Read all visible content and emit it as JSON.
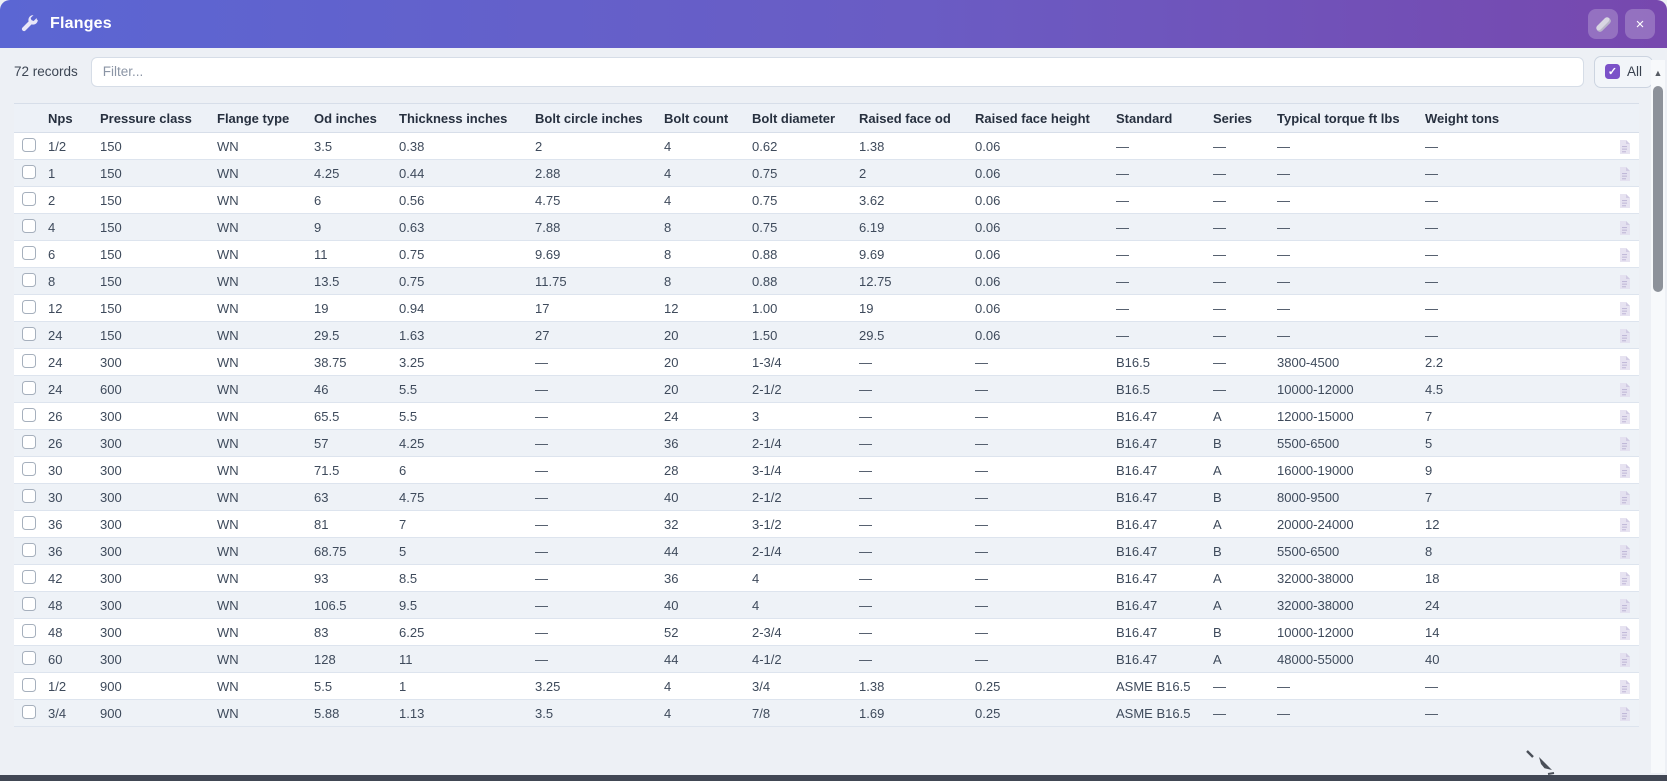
{
  "window": {
    "title": "Flanges"
  },
  "icons": {
    "titlebar_left": "wrench-icon",
    "close": "×",
    "check": "✓",
    "scroll_up": "▲"
  },
  "colors": {
    "titlebar_gradient_left": "#5b66d3",
    "titlebar_gradient_right": "#7748ae",
    "accent_checkbox": "#7b51c8",
    "page_background": "#edf0f5",
    "row_stripe": "#eef2f7",
    "header_row_background": "#edf1f7",
    "text": "#3e4a5b"
  },
  "toolbar": {
    "records_label": "72 records",
    "filter_placeholder": "Filter...",
    "filter_value": "",
    "all_label": "All",
    "all_checkbox_checked": true
  },
  "table": {
    "columns": [
      "Nps",
      "Pressure class",
      "Flange type",
      "Od inches",
      "Thickness inches",
      "Bolt circle inches",
      "Bolt count",
      "Bolt diameter",
      "Raised face od",
      "Raised face height",
      "Standard",
      "Series",
      "Typical torque ft lbs",
      "Weight tons"
    ],
    "column_keys": [
      "nps",
      "pressure-class",
      "flange-type",
      "od-inches",
      "thickness-inches",
      "bolt-circle-inches",
      "bolt-count",
      "bolt-diameter",
      "raised-face-od",
      "raised-face-height",
      "standard",
      "series",
      "typical-torque-ft-lbs",
      "weight-tons"
    ],
    "rows": [
      [
        "1/2",
        "150",
        "WN",
        "3.5",
        "0.38",
        "2",
        "4",
        "0.62",
        "1.38",
        "0.06",
        "—",
        "—",
        "—",
        "—"
      ],
      [
        "1",
        "150",
        "WN",
        "4.25",
        "0.44",
        "2.88",
        "4",
        "0.75",
        "2",
        "0.06",
        "—",
        "—",
        "—",
        "—"
      ],
      [
        "2",
        "150",
        "WN",
        "6",
        "0.56",
        "4.75",
        "4",
        "0.75",
        "3.62",
        "0.06",
        "—",
        "—",
        "—",
        "—"
      ],
      [
        "4",
        "150",
        "WN",
        "9",
        "0.63",
        "7.88",
        "8",
        "0.75",
        "6.19",
        "0.06",
        "—",
        "—",
        "—",
        "—"
      ],
      [
        "6",
        "150",
        "WN",
        "11",
        "0.75",
        "9.69",
        "8",
        "0.88",
        "9.69",
        "0.06",
        "—",
        "—",
        "—",
        "—"
      ],
      [
        "8",
        "150",
        "WN",
        "13.5",
        "0.75",
        "11.75",
        "8",
        "0.88",
        "12.75",
        "0.06",
        "—",
        "—",
        "—",
        "—"
      ],
      [
        "12",
        "150",
        "WN",
        "19",
        "0.94",
        "17",
        "12",
        "1.00",
        "19",
        "0.06",
        "—",
        "—",
        "—",
        "—"
      ],
      [
        "24",
        "150",
        "WN",
        "29.5",
        "1.63",
        "27",
        "20",
        "1.50",
        "29.5",
        "0.06",
        "—",
        "—",
        "—",
        "—"
      ],
      [
        "24",
        "300",
        "WN",
        "38.75",
        "3.25",
        "—",
        "20",
        "1-3/4",
        "—",
        "—",
        "B16.5",
        "—",
        "3800-4500",
        "2.2"
      ],
      [
        "24",
        "600",
        "WN",
        "46",
        "5.5",
        "—",
        "20",
        "2-1/2",
        "—",
        "—",
        "B16.5",
        "—",
        "10000-12000",
        "4.5"
      ],
      [
        "26",
        "300",
        "WN",
        "65.5",
        "5.5",
        "—",
        "24",
        "3",
        "—",
        "—",
        "B16.47",
        "A",
        "12000-15000",
        "7"
      ],
      [
        "26",
        "300",
        "WN",
        "57",
        "4.25",
        "—",
        "36",
        "2-1/4",
        "—",
        "—",
        "B16.47",
        "B",
        "5500-6500",
        "5"
      ],
      [
        "30",
        "300",
        "WN",
        "71.5",
        "6",
        "—",
        "28",
        "3-1/4",
        "—",
        "—",
        "B16.47",
        "A",
        "16000-19000",
        "9"
      ],
      [
        "30",
        "300",
        "WN",
        "63",
        "4.75",
        "—",
        "40",
        "2-1/2",
        "—",
        "—",
        "B16.47",
        "B",
        "8000-9500",
        "7"
      ],
      [
        "36",
        "300",
        "WN",
        "81",
        "7",
        "—",
        "32",
        "3-1/2",
        "—",
        "—",
        "B16.47",
        "A",
        "20000-24000",
        "12"
      ],
      [
        "36",
        "300",
        "WN",
        "68.75",
        "5",
        "—",
        "44",
        "2-1/4",
        "—",
        "—",
        "B16.47",
        "B",
        "5500-6500",
        "8"
      ],
      [
        "42",
        "300",
        "WN",
        "93",
        "8.5",
        "—",
        "36",
        "4",
        "—",
        "—",
        "B16.47",
        "A",
        "32000-38000",
        "18"
      ],
      [
        "48",
        "300",
        "WN",
        "106.5",
        "9.5",
        "—",
        "40",
        "4",
        "—",
        "—",
        "B16.47",
        "A",
        "32000-38000",
        "24"
      ],
      [
        "48",
        "300",
        "WN",
        "83",
        "6.25",
        "—",
        "52",
        "2-3/4",
        "—",
        "—",
        "B16.47",
        "B",
        "10000-12000",
        "14"
      ],
      [
        "60",
        "300",
        "WN",
        "128",
        "11",
        "—",
        "44",
        "4-1/2",
        "—",
        "—",
        "B16.47",
        "A",
        "48000-55000",
        "40"
      ],
      [
        "1/2",
        "900",
        "WN",
        "5.5",
        "1",
        "3.25",
        "4",
        "3/4",
        "1.38",
        "0.25",
        "ASME B16.5",
        "—",
        "—",
        "—"
      ],
      [
        "3/4",
        "900",
        "WN",
        "5.88",
        "1.13",
        "3.5",
        "4",
        "7/8",
        "1.69",
        "0.25",
        "ASME B16.5",
        "—",
        "—",
        "—"
      ]
    ]
  }
}
